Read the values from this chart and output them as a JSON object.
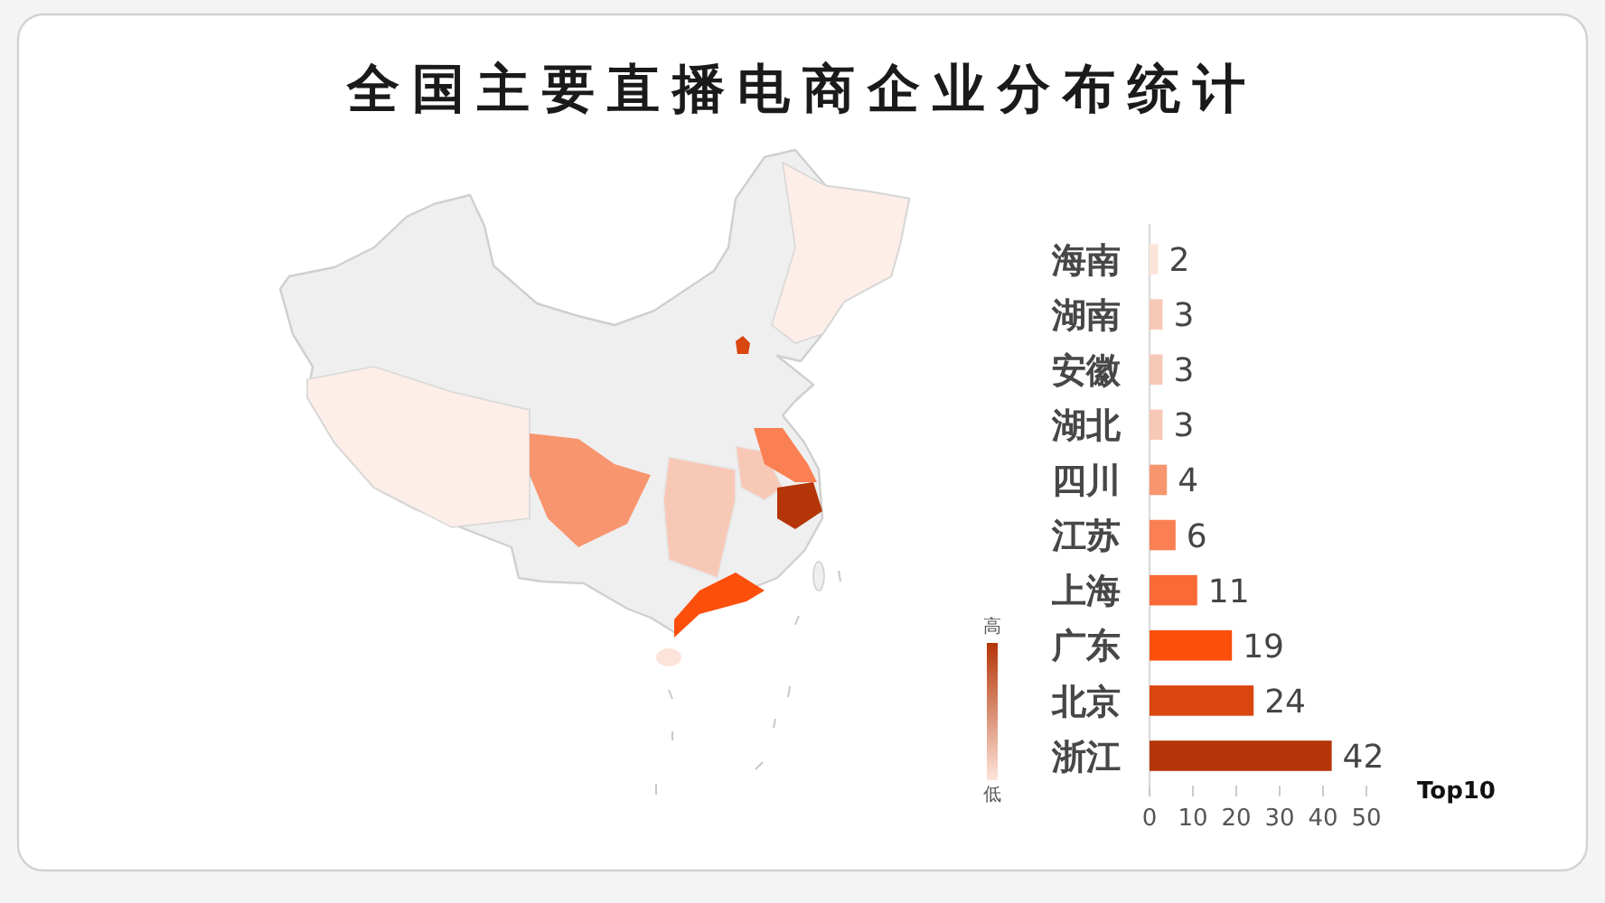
{
  "chart_data": {
    "type": "bar",
    "orientation": "horizontal",
    "title": "全国主要直播电商企业分布统计",
    "categories": [
      "海南",
      "湖南",
      "安徽",
      "湖北",
      "四川",
      "江苏",
      "上海",
      "广东",
      "北京",
      "浙江"
    ],
    "values": [
      2,
      3,
      3,
      3,
      4,
      6,
      11,
      19,
      24,
      42
    ],
    "colors": [
      "#fde4da",
      "#f8c8b6",
      "#f8c8b6",
      "#f8c8b6",
      "#f7956e",
      "#fa7f52",
      "#fb6a36",
      "#fd4f0c",
      "#d9460f",
      "#b43507"
    ],
    "xlim": [
      0,
      50
    ],
    "xticks": [
      0,
      10,
      20,
      30,
      40,
      50
    ],
    "xlabel": "Top10",
    "data_labels": true,
    "annotations": [
      "高",
      "低"
    ]
  }
}
